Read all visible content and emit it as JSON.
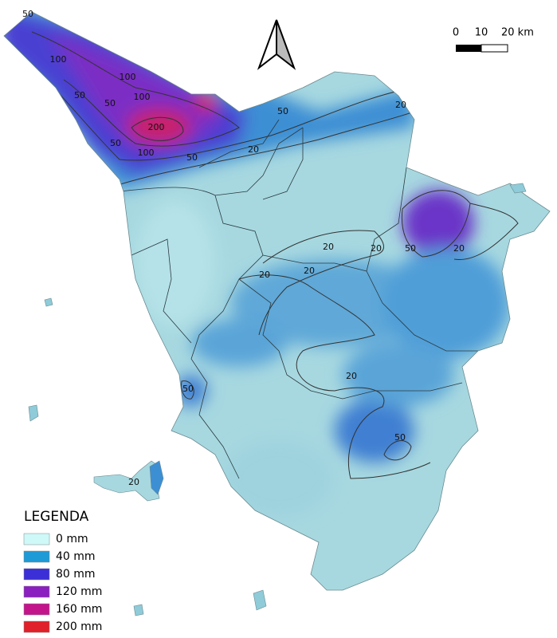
{
  "scale_bar": {
    "labels": [
      "0",
      "10",
      "20 km"
    ]
  },
  "legend": {
    "title": "LEGENDA",
    "items": [
      {
        "label": "0 mm",
        "color": "#cff8f8"
      },
      {
        "label": "40 mm",
        "color": "#1e9ad6"
      },
      {
        "label": "80 mm",
        "color": "#3b2fd8"
      },
      {
        "label": "120 mm",
        "color": "#8b1fc0"
      },
      {
        "label": "160 mm",
        "color": "#c4148c"
      },
      {
        "label": "200 mm",
        "color": "#e0202a"
      }
    ]
  },
  "contour_labels": [
    "50",
    "100",
    "50",
    "100",
    "100",
    "50",
    "200",
    "100",
    "50",
    "50",
    "50",
    "20",
    "20",
    "20",
    "20",
    "50",
    "20",
    "20",
    "20",
    "50",
    "20",
    "50",
    "20"
  ]
}
